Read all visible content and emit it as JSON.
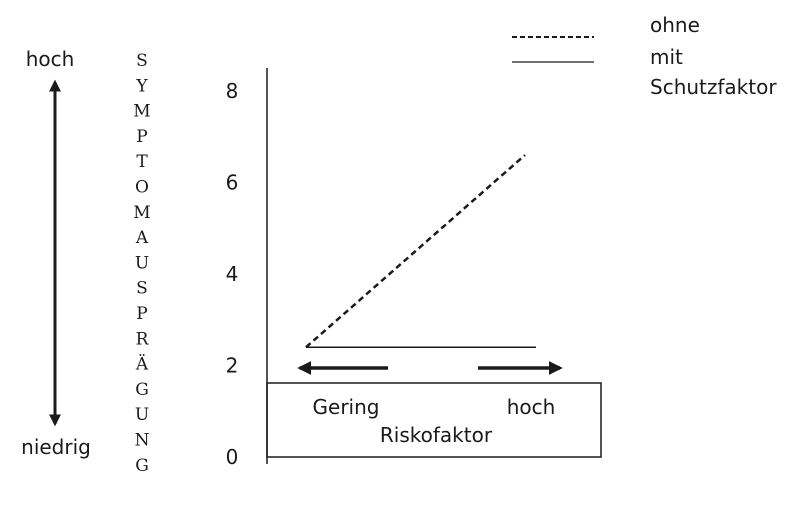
{
  "chart_data": {
    "type": "line",
    "y_ticks": [
      "0",
      "2",
      "4",
      "6",
      "8"
    ],
    "ylim": [
      0,
      8.5
    ],
    "vertical_axis_label": {
      "high": "hoch",
      "low": "niedrig",
      "letters": [
        "S",
        "Y",
        "M",
        "P",
        "T",
        "O",
        "M",
        "A",
        "U",
        "S",
        "P",
        "R",
        "Ä",
        "G",
        "U",
        "N",
        "G"
      ]
    },
    "x_axis_box": {
      "low_label": "Gering",
      "high_label": "hoch",
      "title": "Riskofaktor"
    },
    "series": [
      {
        "name": "ohne",
        "style": "dashed",
        "x": [
          0,
          1
        ],
        "y": [
          2.4,
          6.6
        ]
      },
      {
        "name": "mit Schutzfaktor",
        "style": "solid",
        "x": [
          0,
          1
        ],
        "y": [
          2.4,
          2.4
        ]
      }
    ],
    "legend": {
      "placement": "top-right",
      "entries": [
        {
          "label": "ohne",
          "style": "dashed"
        },
        {
          "label": "mit",
          "style": "solid"
        },
        {
          "label": "Schutzfaktor",
          "style": "none"
        }
      ]
    },
    "colors": {
      "ink": "#1a1a1a"
    }
  }
}
